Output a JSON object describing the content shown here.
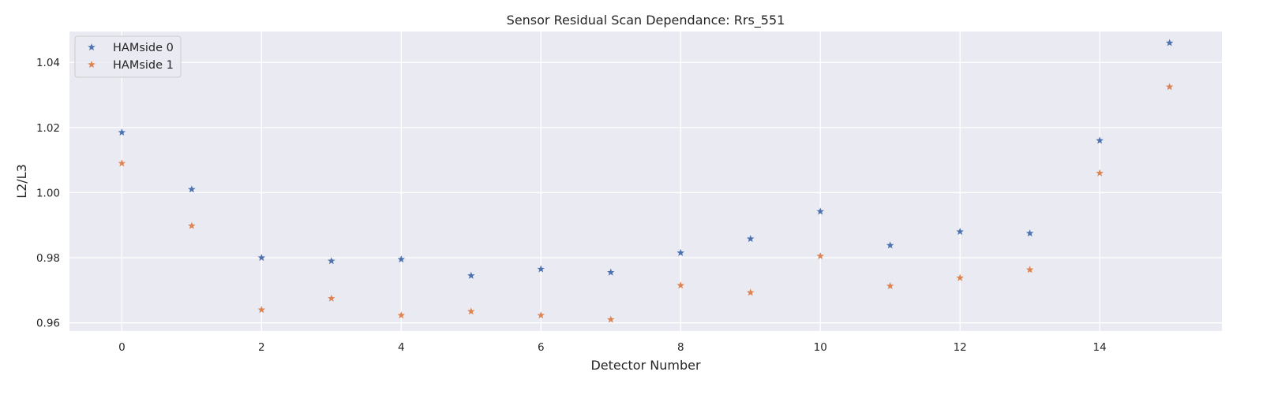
{
  "chart_data": {
    "type": "scatter",
    "title": "Sensor Residual Scan Dependance: Rrs_551",
    "xlabel": "Detector Number",
    "ylabel": "L2/L3",
    "xlim": [
      -0.75,
      15.75
    ],
    "ylim": [
      0.9575,
      1.0495
    ],
    "xticks": [
      0,
      2,
      4,
      6,
      8,
      10,
      12,
      14
    ],
    "yticks": [
      0.96,
      0.98,
      1.0,
      1.02,
      1.04
    ],
    "xtick_labels": [
      "0",
      "2",
      "4",
      "6",
      "8",
      "10",
      "12",
      "14"
    ],
    "ytick_labels": [
      "0.96",
      "0.98",
      "1.00",
      "1.02",
      "1.04"
    ],
    "grid": true,
    "legend_position": "top-left",
    "marker": "star",
    "x": [
      0,
      1,
      2,
      3,
      4,
      5,
      6,
      7,
      8,
      9,
      10,
      11,
      12,
      13,
      14,
      15
    ],
    "series": [
      {
        "name": "HAMside 0",
        "color": "#4c72b0",
        "values": [
          1.0185,
          1.001,
          0.98,
          0.979,
          0.9795,
          0.9745,
          0.9765,
          0.9755,
          0.9815,
          0.9858,
          0.9942,
          0.9838,
          0.988,
          0.9875,
          1.016,
          1.046
        ]
      },
      {
        "name": "HAMside 1",
        "color": "#dd8452",
        "values": [
          1.009,
          0.9898,
          0.964,
          0.9675,
          0.9623,
          0.9635,
          0.9623,
          0.961,
          0.9715,
          0.9693,
          0.9805,
          0.9713,
          0.9738,
          0.9763,
          1.006,
          1.0325
        ]
      }
    ],
    "background_color": "#eaeaf2",
    "grid_color": "#ffffff"
  }
}
